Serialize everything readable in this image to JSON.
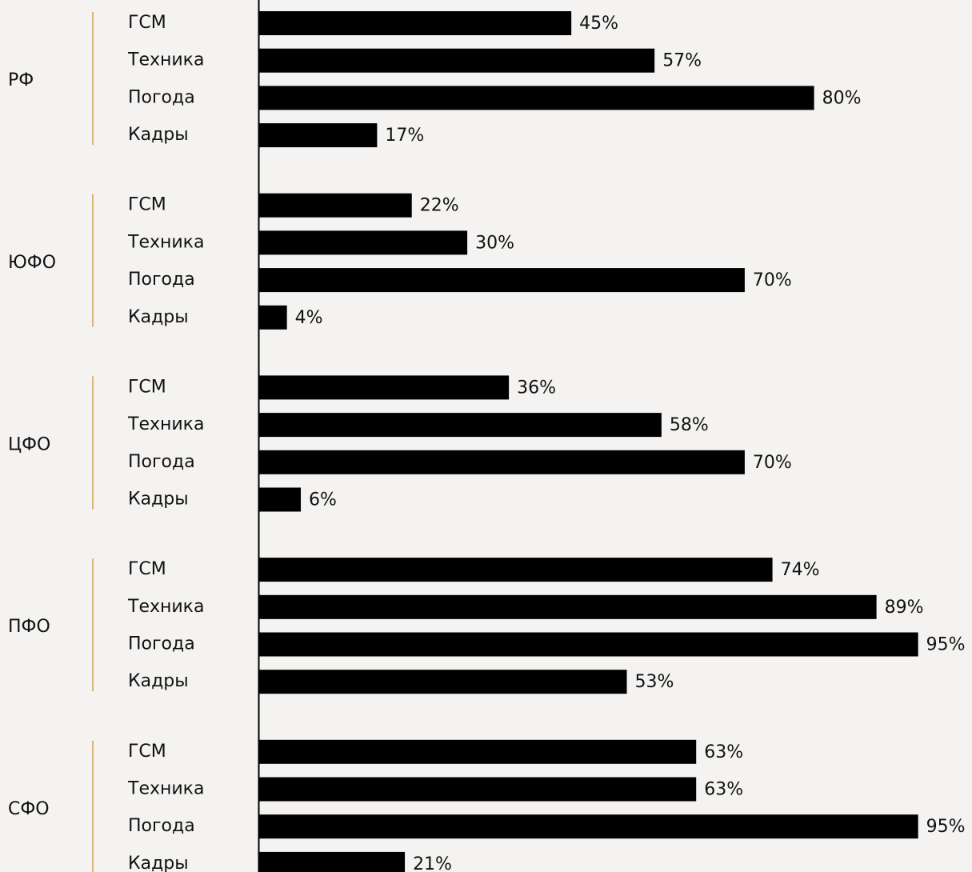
{
  "chart_data": {
    "type": "bar",
    "color": "#000000",
    "accent_color": "#e3b463",
    "xlim": [
      0,
      100
    ],
    "groups": [
      {
        "name": "РФ",
        "categories": [
          "ГСМ",
          "Техника",
          "Погода",
          "Кадры"
        ],
        "values": [
          45,
          57,
          80,
          17
        ],
        "value_labels": [
          "45%",
          "57%",
          "80%",
          "17%"
        ]
      },
      {
        "name": "ЮФО",
        "categories": [
          "ГСМ",
          "Техника",
          "Погода",
          "Кадры"
        ],
        "values": [
          22,
          30,
          70,
          4
        ],
        "value_labels": [
          "22%",
          "30%",
          "70%",
          "4%"
        ]
      },
      {
        "name": "ЦФО",
        "categories": [
          "ГСМ",
          "Техника",
          "Погода",
          "Кадры"
        ],
        "values": [
          36,
          58,
          70,
          6
        ],
        "value_labels": [
          "36%",
          "58%",
          "70%",
          "6%"
        ]
      },
      {
        "name": "ПФО",
        "categories": [
          "ГСМ",
          "Техника",
          "Погода",
          "Кадры"
        ],
        "values": [
          74,
          89,
          95,
          53
        ],
        "value_labels": [
          "74%",
          "89%",
          "95%",
          "53%"
        ]
      },
      {
        "name": "СФО",
        "categories": [
          "ГСМ",
          "Техника",
          "Погода",
          "Кадры"
        ],
        "values": [
          63,
          63,
          95,
          21
        ],
        "value_labels": [
          "63%",
          "63%",
          "95%",
          "21%"
        ]
      }
    ]
  }
}
